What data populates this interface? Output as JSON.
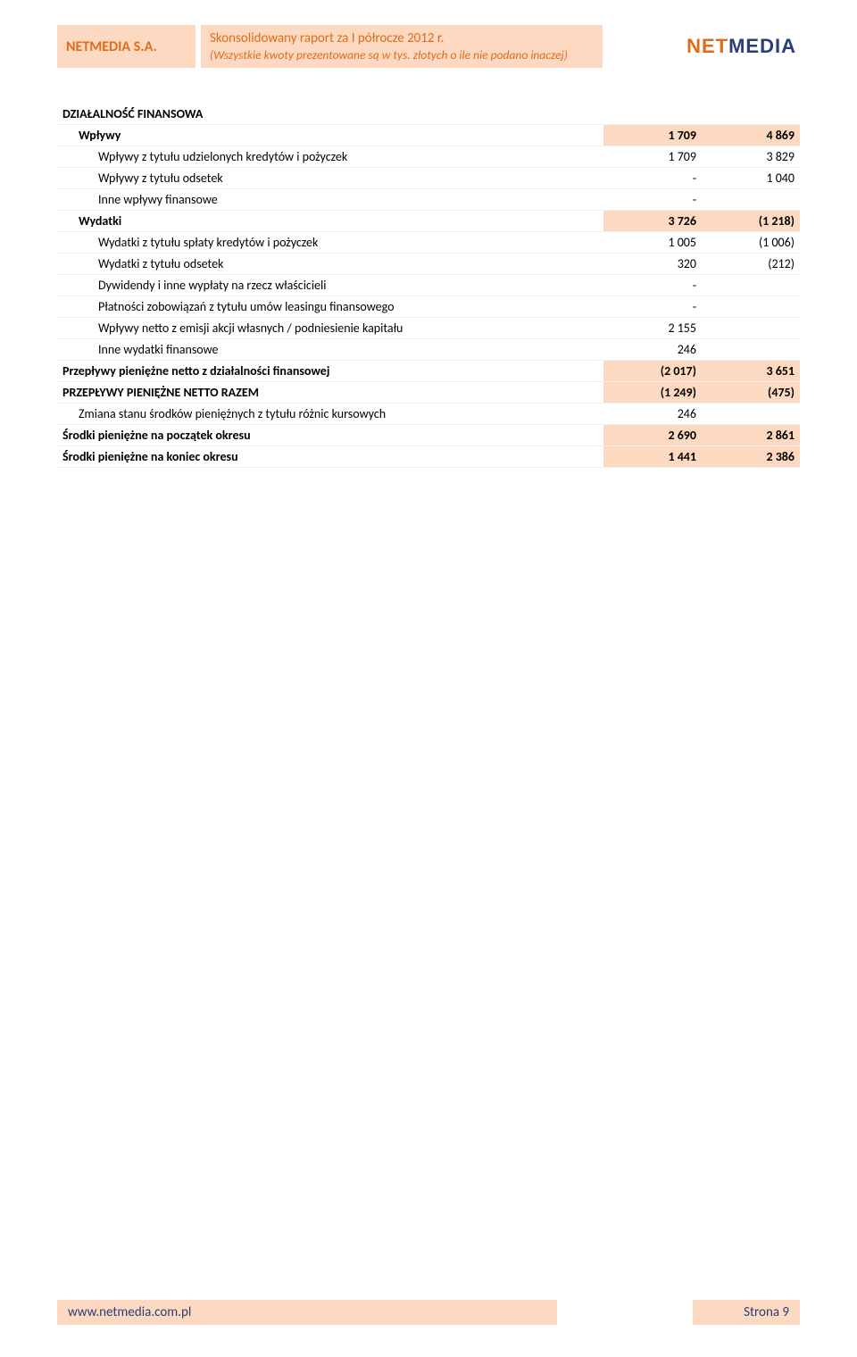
{
  "header": {
    "company": "NETMEDIA S.A.",
    "title_line1": "Skonsolidowany raport za I półrocze 2012 r.",
    "title_line2": "(Wszystkie kwoty prezentowane są w tys. złotych o ile nie podano inaczej)",
    "logo_net": "NET",
    "logo_media": "MEDIA"
  },
  "colors": {
    "peach": "#fcd9c0",
    "orange": "#e06c1a",
    "navy": "#2a3e78",
    "row_border": "#eef0f2"
  },
  "table": {
    "rows": [
      {
        "label": "DZIAŁALNOŚĆ FINANSOWA",
        "c1": "",
        "c2": "",
        "style": "section",
        "indent": 0
      },
      {
        "label": "Wpływy",
        "c1": "1 709",
        "c2": "4 869",
        "style": "bold",
        "indent": 1
      },
      {
        "label": "Wpływy z tytułu udzielonych kredytów i pożyczek",
        "c1": "1 709",
        "c2": "3 829",
        "style": "",
        "indent": 2
      },
      {
        "label": "Wpływy z tytułu odsetek",
        "c1": "-",
        "c2": "1 040",
        "style": "",
        "indent": 2
      },
      {
        "label": "Inne wpływy finansowe",
        "c1": "-",
        "c2": "",
        "style": "",
        "indent": 2
      },
      {
        "label": "Wydatki",
        "c1": "3 726",
        "c2": "(1 218)",
        "style": "bold",
        "indent": 1
      },
      {
        "label": "Wydatki z tytułu spłaty kredytów i pożyczek",
        "c1": "1 005",
        "c2": "(1 006)",
        "style": "",
        "indent": 2
      },
      {
        "label": "Wydatki z tytułu odsetek",
        "c1": "320",
        "c2": "(212)",
        "style": "",
        "indent": 2
      },
      {
        "label": "Dywidendy i inne wypłaty na rzecz właścicieli",
        "c1": "-",
        "c2": "",
        "style": "",
        "indent": 2
      },
      {
        "label": "Płatności zobowiązań z tytułu umów leasingu finansowego",
        "c1": "-",
        "c2": "",
        "style": "",
        "indent": 2
      },
      {
        "label": "Wpływy netto z emisji akcji własnych / podniesienie kapitału",
        "c1": "2 155",
        "c2": "",
        "style": "",
        "indent": 2
      },
      {
        "label": "Inne wydatki finansowe",
        "c1": "246",
        "c2": "",
        "style": "",
        "indent": 2
      },
      {
        "label": "Przepływy pieniężne netto z działalności finansowej",
        "c1": "(2 017)",
        "c2": "3 651",
        "style": "bold",
        "indent": 0
      },
      {
        "label": "PRZEPŁYWY PIENIĘŻNE NETTO RAZEM",
        "c1": "(1 249)",
        "c2": "(475)",
        "style": "bold",
        "indent": 0
      },
      {
        "label": "Zmiana stanu środków pieniężnych z tytułu różnic kursowych",
        "c1": "246",
        "c2": "",
        "style": "",
        "indent": 1
      },
      {
        "label": "Środki pieniężne na początek okresu",
        "c1": "2 690",
        "c2": "2 861",
        "style": "bold",
        "indent": 0
      },
      {
        "label": "Środki pieniężne na koniec okresu",
        "c1": "1 441",
        "c2": "2 386",
        "style": "bold",
        "indent": 0
      }
    ]
  },
  "footer": {
    "url": "www.netmedia.com.pl",
    "page": "Strona 9"
  }
}
